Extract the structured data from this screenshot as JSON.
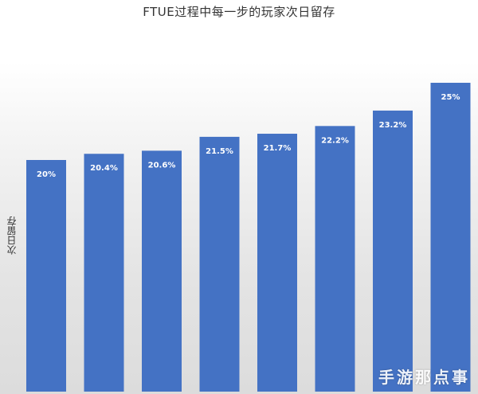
{
  "chart_data": {
    "type": "bar",
    "title": "FTUE过程中每一步的玩家次日留存",
    "xlabel": "",
    "ylabel": "次日留存",
    "categories": [
      "",
      "",
      "",
      "",
      "",
      "",
      "",
      ""
    ],
    "values": [
      20,
      20.4,
      20.6,
      21.5,
      21.7,
      22.2,
      23.2,
      25
    ],
    "data_labels": [
      "20%",
      "20.4%",
      "20.6%",
      "21.5%",
      "21.7%",
      "22.2%",
      "23.2%",
      "25%"
    ],
    "ylim": [
      0,
      25
    ],
    "grid": false,
    "bar_color": "#4472c4"
  },
  "watermark": "手游那点事"
}
